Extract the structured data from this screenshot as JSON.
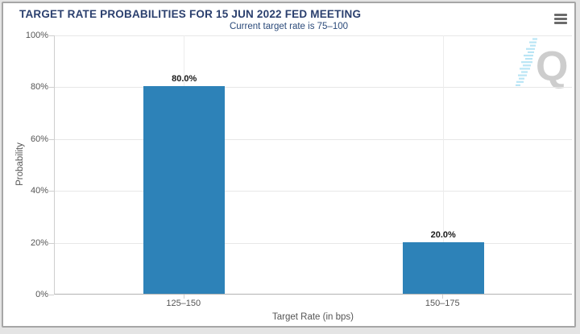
{
  "page": {
    "background_color": "#e4e4e4",
    "card_border_color": "#a6a6a6"
  },
  "header": {
    "title": "TARGET RATE PROBABILITIES FOR 15 JUN 2022 FED MEETING",
    "title_color": "#2a3f6e",
    "menu_icon": "hamburger-icon"
  },
  "watermark": {
    "letter": "Q",
    "letter_color": "#cdcdcd",
    "dash_color": "#b9e5f5"
  },
  "chart_data": {
    "type": "bar",
    "title": "Current target rate is 75–100",
    "categories": [
      "125–150",
      "150–175"
    ],
    "values": [
      80.0,
      20.0
    ],
    "value_labels": [
      "80.0%",
      "20.0%"
    ],
    "xlabel": "Target Rate (in bps)",
    "ylabel": "Probability",
    "ylim": [
      0,
      100
    ],
    "yticks": [
      0,
      20,
      40,
      60,
      80,
      100
    ],
    "ytick_suffix": "%",
    "grid": true,
    "legend": false,
    "bar_color": "#2d82b8",
    "bar_label_color": "#1a1a1a",
    "axis_text_color": "#555555"
  }
}
